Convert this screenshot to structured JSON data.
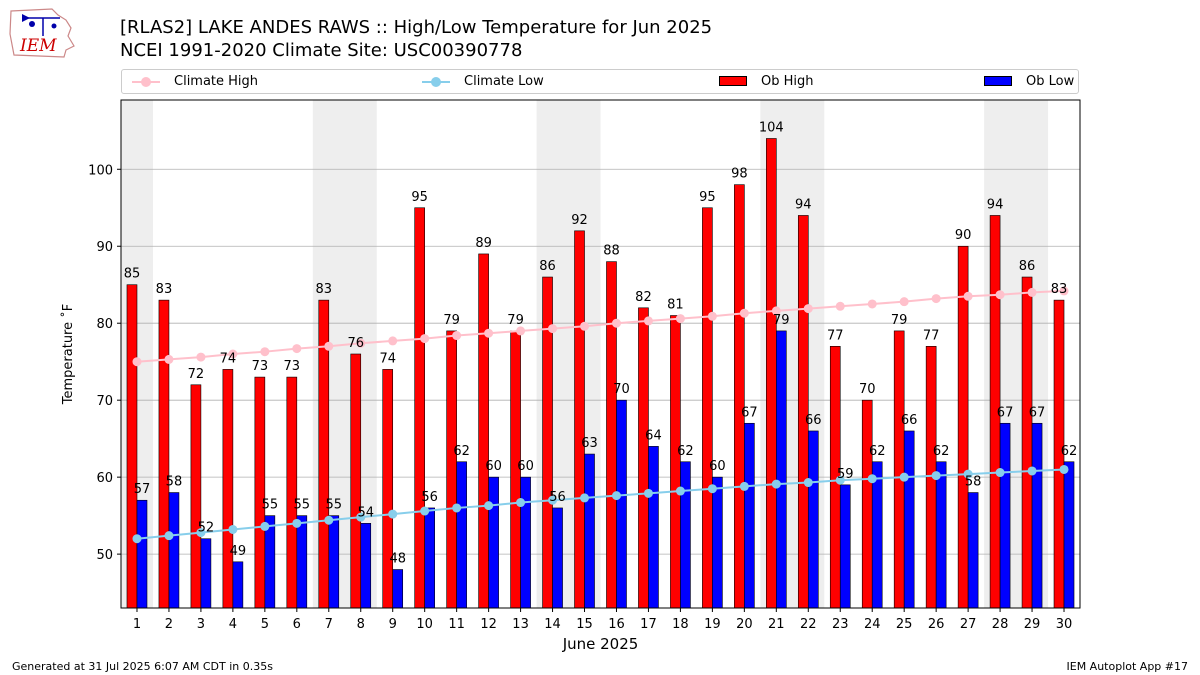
{
  "header": {
    "logo_text": "IEM",
    "title_line1": "[RLAS2] LAKE ANDES RAWS :: High/Low Temperature for Jun 2025",
    "title_line2": "NCEI 1991-2020 Climate Site: USC00390778"
  },
  "footer": {
    "left": "Generated at 31 Jul 2025 6:07 AM CDT in 0.35s",
    "right": "IEM Autoplot App #17"
  },
  "colors": {
    "ob_high": "#ff0000",
    "ob_low": "#0000ff",
    "climate_high": "#ffc0cb",
    "climate_low": "#87ceeb",
    "weekend_band": "#eeeeee",
    "grid": "#b0b0b0"
  },
  "chart_data": {
    "type": "bar",
    "title": "[RLAS2] LAKE ANDES RAWS :: High/Low Temperature for Jun 2025",
    "subtitle": "NCEI 1991-2020 Climate Site: USC00390778",
    "xlabel": "June 2025",
    "ylabel": "Temperature ˚F",
    "categories": [
      "1",
      "2",
      "3",
      "4",
      "5",
      "6",
      "7",
      "8",
      "9",
      "10",
      "11",
      "12",
      "13",
      "14",
      "15",
      "16",
      "17",
      "18",
      "19",
      "20",
      "21",
      "22",
      "23",
      "24",
      "25",
      "26",
      "27",
      "28",
      "29",
      "30"
    ],
    "ylim": [
      43,
      109
    ],
    "yticks": [
      50,
      60,
      70,
      80,
      90,
      100
    ],
    "grid": "y",
    "legend_position": "top",
    "weekend_bands": [
      [
        1,
        1
      ],
      [
        7,
        8
      ],
      [
        14,
        15
      ],
      [
        21,
        22
      ],
      [
        28,
        29
      ]
    ],
    "series": [
      {
        "name": "Ob High",
        "kind": "bar",
        "values": [
          85,
          83,
          72,
          74,
          73,
          73,
          83,
          76,
          74,
          95,
          79,
          89,
          79,
          86,
          92,
          88,
          82,
          81,
          95,
          98,
          104,
          94,
          77,
          70,
          79,
          77,
          90,
          94,
          86,
          83
        ]
      },
      {
        "name": "Ob Low",
        "kind": "bar",
        "values": [
          57,
          58,
          52,
          49,
          55,
          55,
          55,
          54,
          48,
          56,
          62,
          60,
          60,
          56,
          63,
          70,
          64,
          62,
          60,
          67,
          79,
          66,
          59,
          62,
          66,
          62,
          58,
          67,
          67,
          62
        ]
      },
      {
        "name": "Climate High",
        "kind": "line",
        "values": [
          75.0,
          75.3,
          75.6,
          76.0,
          76.3,
          76.7,
          77.0,
          77.4,
          77.7,
          78.0,
          78.4,
          78.7,
          79.0,
          79.3,
          79.6,
          80.0,
          80.3,
          80.6,
          80.9,
          81.3,
          81.6,
          81.9,
          82.2,
          82.5,
          82.8,
          83.2,
          83.5,
          83.7,
          84.0,
          84.2
        ]
      },
      {
        "name": "Climate Low",
        "kind": "line",
        "values": [
          52.0,
          52.4,
          52.8,
          53.2,
          53.6,
          54.0,
          54.4,
          54.8,
          55.2,
          55.6,
          56.0,
          56.3,
          56.7,
          57.0,
          57.3,
          57.6,
          57.9,
          58.2,
          58.5,
          58.8,
          59.1,
          59.3,
          59.6,
          59.8,
          60.0,
          60.2,
          60.4,
          60.6,
          60.8,
          61.0
        ]
      }
    ]
  }
}
